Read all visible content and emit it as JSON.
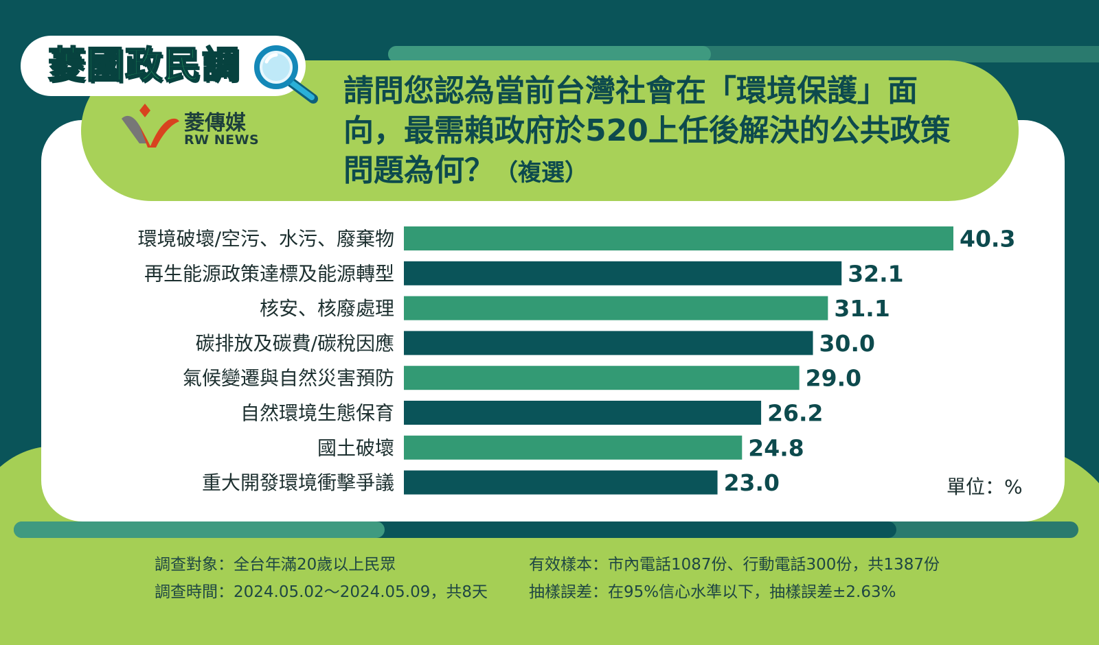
{
  "brand": {
    "title": "菱國政民調",
    "logo_cn": "菱傳媒",
    "logo_en": "RW NEWS"
  },
  "question": {
    "text": "請問您認為當前台灣社會在「環境保護」面向，最需賴政府於520上任後解決的公共政策問題為何？",
    "note": "（複選）"
  },
  "chart_data": {
    "type": "bar",
    "orientation": "horizontal",
    "categories": [
      "環境破壞/空污、水污、廢棄物",
      "再生能源政策達標及能源轉型",
      "核安、核廢處理",
      "碳排放及碳費/碳稅因應",
      "氣候變遷與自然災害預防",
      "自然環境生態保育",
      "國土破壞",
      "重大開發環境衝擊爭議"
    ],
    "values": [
      40.3,
      32.1,
      31.1,
      30.0,
      29.0,
      26.2,
      24.8,
      23.0
    ],
    "value_labels": [
      "40.3",
      "32.1",
      "31.1",
      "30.0",
      "29.0",
      "26.2",
      "24.8",
      "23.0"
    ],
    "unit": "單位：%",
    "bar_colors": [
      "#339a74",
      "#0a5459"
    ],
    "grid": false,
    "xlim": [
      0,
      40.3
    ]
  },
  "footer": {
    "subject": "調查對象：全台年滿20歲以上民眾",
    "period": "調查時間：2024.05.02～2024.05.09，共8天",
    "sample": "有效樣本：市內電話1087份、行動電話300份，共1387份",
    "error": "抽樣誤差：在95%信心水準以下，抽樣誤差±2.63%"
  },
  "colors": {
    "background": "#0a5459",
    "banner_green": "#a8d158",
    "bar_light": "#339a74",
    "bar_dark": "#0a5459",
    "text_dark": "#0d4a4d"
  },
  "icons": [
    "magnifier-icon",
    "rwnews-logo-icon"
  ]
}
